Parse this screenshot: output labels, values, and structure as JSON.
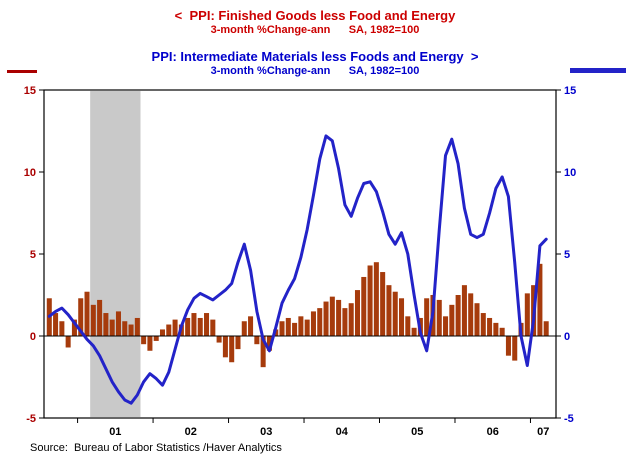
{
  "colors": {
    "title_red": "#cc0000",
    "title_blue": "#0000cc",
    "bar_fill": "#a63b0c",
    "line_blue": "#2323c8",
    "left_axis_labels": "#aa0000",
    "right_axis_labels": "#0000cc",
    "recession_gray": "#c9c9c9",
    "axis_black": "#000000"
  },
  "chart_data": {
    "type": "combo",
    "titles": {
      "series1_title": "<  PPI: Finished Goods less Food and Energy",
      "series1_subtitle": "3-month %Change-ann      SA, 1982=100",
      "series2_title": "PPI: Intermediate Materials less Foods and Energy  >",
      "series2_subtitle": "3-month %Change-ann      SA, 1982=100"
    },
    "x": [
      "2000-08",
      "2000-09",
      "2000-10",
      "2000-11",
      "2000-12",
      "2001-01",
      "2001-02",
      "2001-03",
      "2001-04",
      "2001-05",
      "2001-06",
      "2001-07",
      "2001-08",
      "2001-09",
      "2001-10",
      "2001-11",
      "2001-12",
      "2002-01",
      "2002-02",
      "2002-03",
      "2002-04",
      "2002-05",
      "2002-06",
      "2002-07",
      "2002-08",
      "2002-09",
      "2002-10",
      "2002-11",
      "2002-12",
      "2003-01",
      "2003-02",
      "2003-03",
      "2003-04",
      "2003-05",
      "2003-06",
      "2003-07",
      "2003-08",
      "2003-09",
      "2003-10",
      "2003-11",
      "2003-12",
      "2004-01",
      "2004-02",
      "2004-03",
      "2004-04",
      "2004-05",
      "2004-06",
      "2004-07",
      "2004-08",
      "2004-09",
      "2004-10",
      "2004-11",
      "2004-12",
      "2005-01",
      "2005-02",
      "2005-03",
      "2005-04",
      "2005-05",
      "2005-06",
      "2005-07",
      "2005-08",
      "2005-09",
      "2005-10",
      "2005-11",
      "2005-12",
      "2006-01",
      "2006-02",
      "2006-03",
      "2006-04",
      "2006-05",
      "2006-06",
      "2006-07",
      "2006-08",
      "2006-09",
      "2006-10",
      "2006-11",
      "2006-12",
      "2007-01",
      "2007-02",
      "2007-03"
    ],
    "x_year_labels": [
      "01",
      "02",
      "03",
      "04",
      "05",
      "06",
      "07"
    ],
    "x_label_start_year": 2001,
    "ylim": [
      -5,
      15
    ],
    "yticks": [
      15,
      10,
      5,
      0,
      -5
    ],
    "left_axis_color": "#aa0000",
    "right_axis_color": "#0000cc",
    "grid": false,
    "recession_band": {
      "from": "2001-03",
      "to": "2001-11",
      "color": "#c9c9c9"
    },
    "series": [
      {
        "name": "PPI: Finished Goods less Food and Energy",
        "subtitle": "3-month %Change-ann, SA, 1982=100",
        "type": "bar",
        "axis": "left",
        "color": "#a63b0c",
        "values": [
          2.3,
          1.4,
          0.9,
          -0.7,
          1.0,
          2.3,
          2.7,
          1.9,
          2.2,
          1.4,
          1.0,
          1.5,
          0.9,
          0.7,
          1.1,
          -0.5,
          -0.9,
          -0.3,
          0.4,
          0.7,
          1.0,
          0.7,
          1.1,
          1.4,
          1.1,
          1.4,
          1.0,
          -0.4,
          -1.3,
          -1.6,
          -0.8,
          0.9,
          1.2,
          -0.5,
          -1.9,
          -0.9,
          0.4,
          0.9,
          1.1,
          0.8,
          1.2,
          1.0,
          1.5,
          1.7,
          2.1,
          2.4,
          2.2,
          1.7,
          2.0,
          2.8,
          3.6,
          4.3,
          4.5,
          3.9,
          3.1,
          2.7,
          2.3,
          1.2,
          0.5,
          1.1,
          2.3,
          2.5,
          2.2,
          1.2,
          1.9,
          2.5,
          3.1,
          2.6,
          2.0,
          1.4,
          1.1,
          0.8,
          0.5,
          -1.2,
          -1.5,
          0.8,
          2.6,
          3.1,
          4.4,
          0.9
        ]
      },
      {
        "name": "PPI: Intermediate Materials less Foods and Energy",
        "subtitle": "3-month %Change-ann, SA, 1982=100",
        "type": "line",
        "axis": "right",
        "color": "#2323c8",
        "values": [
          1.2,
          1.5,
          1.7,
          1.3,
          0.8,
          0.3,
          -0.2,
          -0.6,
          -1.2,
          -2.0,
          -2.8,
          -3.4,
          -3.9,
          -4.1,
          -3.6,
          -2.8,
          -2.3,
          -2.6,
          -3.0,
          -2.2,
          -0.8,
          0.6,
          1.6,
          2.3,
          2.6,
          2.4,
          2.2,
          2.5,
          2.8,
          3.2,
          4.5,
          5.6,
          4.0,
          1.5,
          -0.2,
          -0.9,
          0.5,
          2.0,
          2.8,
          3.5,
          4.8,
          6.5,
          8.6,
          10.8,
          12.2,
          11.9,
          10.2,
          8.0,
          7.3,
          8.4,
          9.3,
          9.4,
          8.8,
          7.6,
          6.2,
          5.6,
          6.3,
          5.0,
          2.5,
          0.2,
          -0.9,
          1.5,
          6.5,
          11.0,
          12.0,
          10.5,
          7.8,
          6.2,
          6.0,
          6.2,
          7.5,
          9.0,
          9.7,
          8.5,
          4.5,
          0.0,
          -1.8,
          1.0,
          5.5,
          5.9
        ]
      }
    ]
  },
  "footer": {
    "source": "Source:  Bureau of Labor Statistics /Haver Analytics"
  }
}
